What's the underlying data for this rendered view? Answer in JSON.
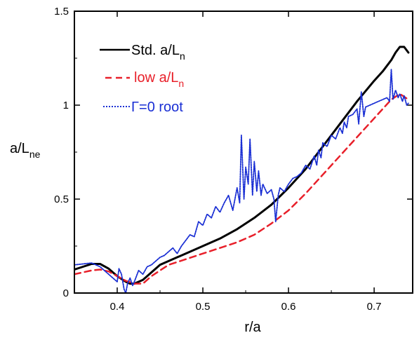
{
  "chart_data": {
    "type": "line",
    "xlabel": "r/a",
    "ylabel": {
      "main": "a/L",
      "sub": "ne"
    },
    "xlim": [
      0.35,
      0.745
    ],
    "ylim": [
      0,
      1.5
    ],
    "xticks": [
      0.4,
      0.5,
      0.6,
      0.7
    ],
    "xtick_labels": [
      "0.4",
      "0.5",
      "0.6",
      "0.7"
    ],
    "yticks": [
      0,
      0.5,
      1,
      1.5
    ],
    "ytick_labels": [
      "0",
      "0.5",
      "1",
      "1.5"
    ],
    "grid": false,
    "legend_position": "top-left",
    "series": [
      {
        "name": "Std. a/L",
        "name_sub": "n",
        "color": "#000000",
        "style": "solid",
        "x": [
          0.35,
          0.36,
          0.37,
          0.38,
          0.39,
          0.4,
          0.41,
          0.415,
          0.42,
          0.43,
          0.44,
          0.45,
          0.46,
          0.48,
          0.5,
          0.52,
          0.54,
          0.56,
          0.58,
          0.6,
          0.62,
          0.64,
          0.66,
          0.68,
          0.7,
          0.71,
          0.72,
          0.725,
          0.73,
          0.735,
          0.74
        ],
        "y": [
          0.125,
          0.14,
          0.155,
          0.155,
          0.13,
          0.09,
          0.06,
          0.05,
          0.05,
          0.07,
          0.11,
          0.15,
          0.17,
          0.21,
          0.25,
          0.29,
          0.34,
          0.4,
          0.47,
          0.56,
          0.66,
          0.78,
          0.9,
          1.02,
          1.13,
          1.18,
          1.24,
          1.28,
          1.31,
          1.31,
          1.28
        ]
      },
      {
        "name": "low a/L",
        "name_sub": "n",
        "color": "#e8202a",
        "style": "dashed",
        "x": [
          0.35,
          0.36,
          0.37,
          0.38,
          0.39,
          0.4,
          0.41,
          0.42,
          0.43,
          0.44,
          0.45,
          0.46,
          0.48,
          0.5,
          0.52,
          0.54,
          0.56,
          0.58,
          0.6,
          0.62,
          0.64,
          0.66,
          0.68,
          0.7,
          0.71,
          0.72,
          0.73,
          0.74
        ],
        "y": [
          0.1,
          0.11,
          0.12,
          0.125,
          0.115,
          0.09,
          0.065,
          0.05,
          0.05,
          0.09,
          0.12,
          0.15,
          0.18,
          0.21,
          0.24,
          0.27,
          0.31,
          0.37,
          0.44,
          0.53,
          0.63,
          0.73,
          0.83,
          0.93,
          0.98,
          1.03,
          1.06,
          1.03
        ]
      },
      {
        "name": "Γ=0 root",
        "color": "#1a2fd4",
        "style": "dotted",
        "x": [
          0.35,
          0.36,
          0.37,
          0.375,
          0.38,
          0.385,
          0.39,
          0.395,
          0.4,
          0.402,
          0.405,
          0.408,
          0.41,
          0.412,
          0.415,
          0.418,
          0.42,
          0.425,
          0.43,
          0.435,
          0.44,
          0.445,
          0.45,
          0.455,
          0.46,
          0.465,
          0.47,
          0.475,
          0.48,
          0.485,
          0.49,
          0.495,
          0.5,
          0.505,
          0.51,
          0.515,
          0.52,
          0.525,
          0.53,
          0.535,
          0.54,
          0.543,
          0.545,
          0.548,
          0.55,
          0.553,
          0.555,
          0.558,
          0.56,
          0.563,
          0.565,
          0.568,
          0.57,
          0.575,
          0.58,
          0.583,
          0.585,
          0.588,
          0.59,
          0.595,
          0.6,
          0.605,
          0.61,
          0.615,
          0.62,
          0.625,
          0.63,
          0.633,
          0.635,
          0.638,
          0.64,
          0.645,
          0.65,
          0.655,
          0.66,
          0.663,
          0.665,
          0.668,
          0.67,
          0.675,
          0.68,
          0.682,
          0.685,
          0.688,
          0.69,
          0.695,
          0.7,
          0.705,
          0.71,
          0.715,
          0.718,
          0.72,
          0.722,
          0.725,
          0.728,
          0.73,
          0.733,
          0.735,
          0.738,
          0.74
        ],
        "y": [
          0.15,
          0.155,
          0.16,
          0.15,
          0.14,
          0.12,
          0.1,
          0.08,
          0.06,
          0.13,
          0.1,
          0.02,
          0.0,
          0.05,
          0.08,
          0.04,
          0.06,
          0.12,
          0.1,
          0.14,
          0.15,
          0.17,
          0.19,
          0.2,
          0.22,
          0.24,
          0.21,
          0.25,
          0.28,
          0.31,
          0.3,
          0.38,
          0.36,
          0.42,
          0.4,
          0.46,
          0.43,
          0.48,
          0.52,
          0.44,
          0.56,
          0.48,
          0.84,
          0.5,
          0.67,
          0.58,
          0.82,
          0.52,
          0.7,
          0.54,
          0.65,
          0.52,
          0.58,
          0.53,
          0.55,
          0.5,
          0.38,
          0.52,
          0.56,
          0.54,
          0.58,
          0.61,
          0.62,
          0.64,
          0.68,
          0.66,
          0.73,
          0.68,
          0.76,
          0.72,
          0.8,
          0.78,
          0.84,
          0.82,
          0.88,
          0.85,
          0.91,
          0.88,
          0.94,
          0.95,
          0.98,
          0.9,
          1.07,
          0.94,
          0.99,
          1.0,
          1.01,
          1.02,
          1.03,
          1.04,
          1.02,
          1.19,
          1.03,
          1.08,
          1.04,
          1.06,
          1.02,
          1.05,
          1.0,
          1.01
        ]
      }
    ]
  }
}
